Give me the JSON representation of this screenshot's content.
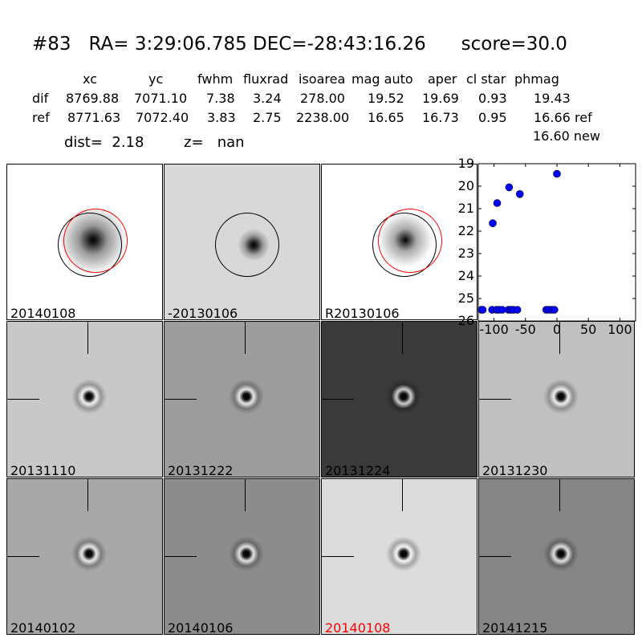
{
  "title": "#83   RA= 3:29:06.785 DEC=-28:43:16.26      score=30.0",
  "columns": [
    "xc",
    "yc",
    "fwhm",
    "fluxrad",
    "isoarea",
    "mag auto",
    "aper",
    "cl star",
    "phmag"
  ],
  "rows": [
    {
      "label": "dif",
      "values": [
        "8769.88",
        "7071.10",
        "7.38",
        "3.24",
        "278.00",
        "19.52",
        "19.69",
        "0.93",
        "19.43"
      ],
      "suffix": ""
    },
    {
      "label": "ref",
      "values": [
        "8771.63",
        "7072.40",
        "3.83",
        "2.75",
        "2238.00",
        "16.65",
        "16.73",
        "0.95",
        "16.66"
      ],
      "suffix": "ref"
    }
  ],
  "new_phmag": "16.60 new",
  "dist": "dist=  2.18",
  "z": "z=   nan",
  "panels": [
    {
      "label": "20140108",
      "bg": "#ffffff",
      "color": "#000000"
    },
    {
      "label": "-20130106",
      "bg": "#d8d8d8",
      "color": "#000000"
    },
    {
      "label": "R20130106",
      "bg": "#ffffff",
      "color": "#000000"
    },
    {
      "label": "20131110",
      "bg": "#c8c8c8",
      "color": "#000000"
    },
    {
      "label": "20131222",
      "bg": "#9c9c9c",
      "color": "#000000"
    },
    {
      "label": "20131224",
      "bg": "#3a3a3a",
      "color": "#000000"
    },
    {
      "label": "20131230",
      "bg": "#c0c0c0",
      "color": "#000000"
    },
    {
      "label": "20140102",
      "bg": "#a8a8a8",
      "color": "#000000"
    },
    {
      "label": "20140106",
      "bg": "#8c8c8c",
      "color": "#000000"
    },
    {
      "label": "20140108",
      "bg": "#dcdcdc",
      "color": "#ff0000"
    },
    {
      "label": "20141215",
      "bg": "#858585",
      "color": "#000000"
    }
  ],
  "chart_data": {
    "type": "scatter",
    "xlim": [
      -125,
      125
    ],
    "ylim": [
      26,
      19
    ],
    "xticks": [
      "-100",
      "-50",
      "0",
      "50",
      "100"
    ],
    "yticks": [
      "19",
      "20",
      "21",
      "22",
      "23",
      "24",
      "25",
      "26"
    ],
    "color": "#0000ff",
    "points": [
      [
        -102,
        21.65
      ],
      [
        -95,
        20.75
      ],
      [
        -76,
        20.05
      ],
      [
        -59,
        20.35
      ],
      [
        0,
        19.45
      ],
      [
        -120,
        25.5
      ],
      [
        -118,
        25.5
      ],
      [
        -103,
        25.5
      ],
      [
        -96,
        25.5
      ],
      [
        -92,
        25.5
      ],
      [
        -87,
        25.5
      ],
      [
        -77,
        25.5
      ],
      [
        -73,
        25.5
      ],
      [
        -69,
        25.5
      ],
      [
        -63,
        25.5
      ],
      [
        -17,
        25.5
      ],
      [
        -13,
        25.5
      ],
      [
        -8,
        25.5
      ],
      [
        -4,
        25.5
      ]
    ]
  }
}
